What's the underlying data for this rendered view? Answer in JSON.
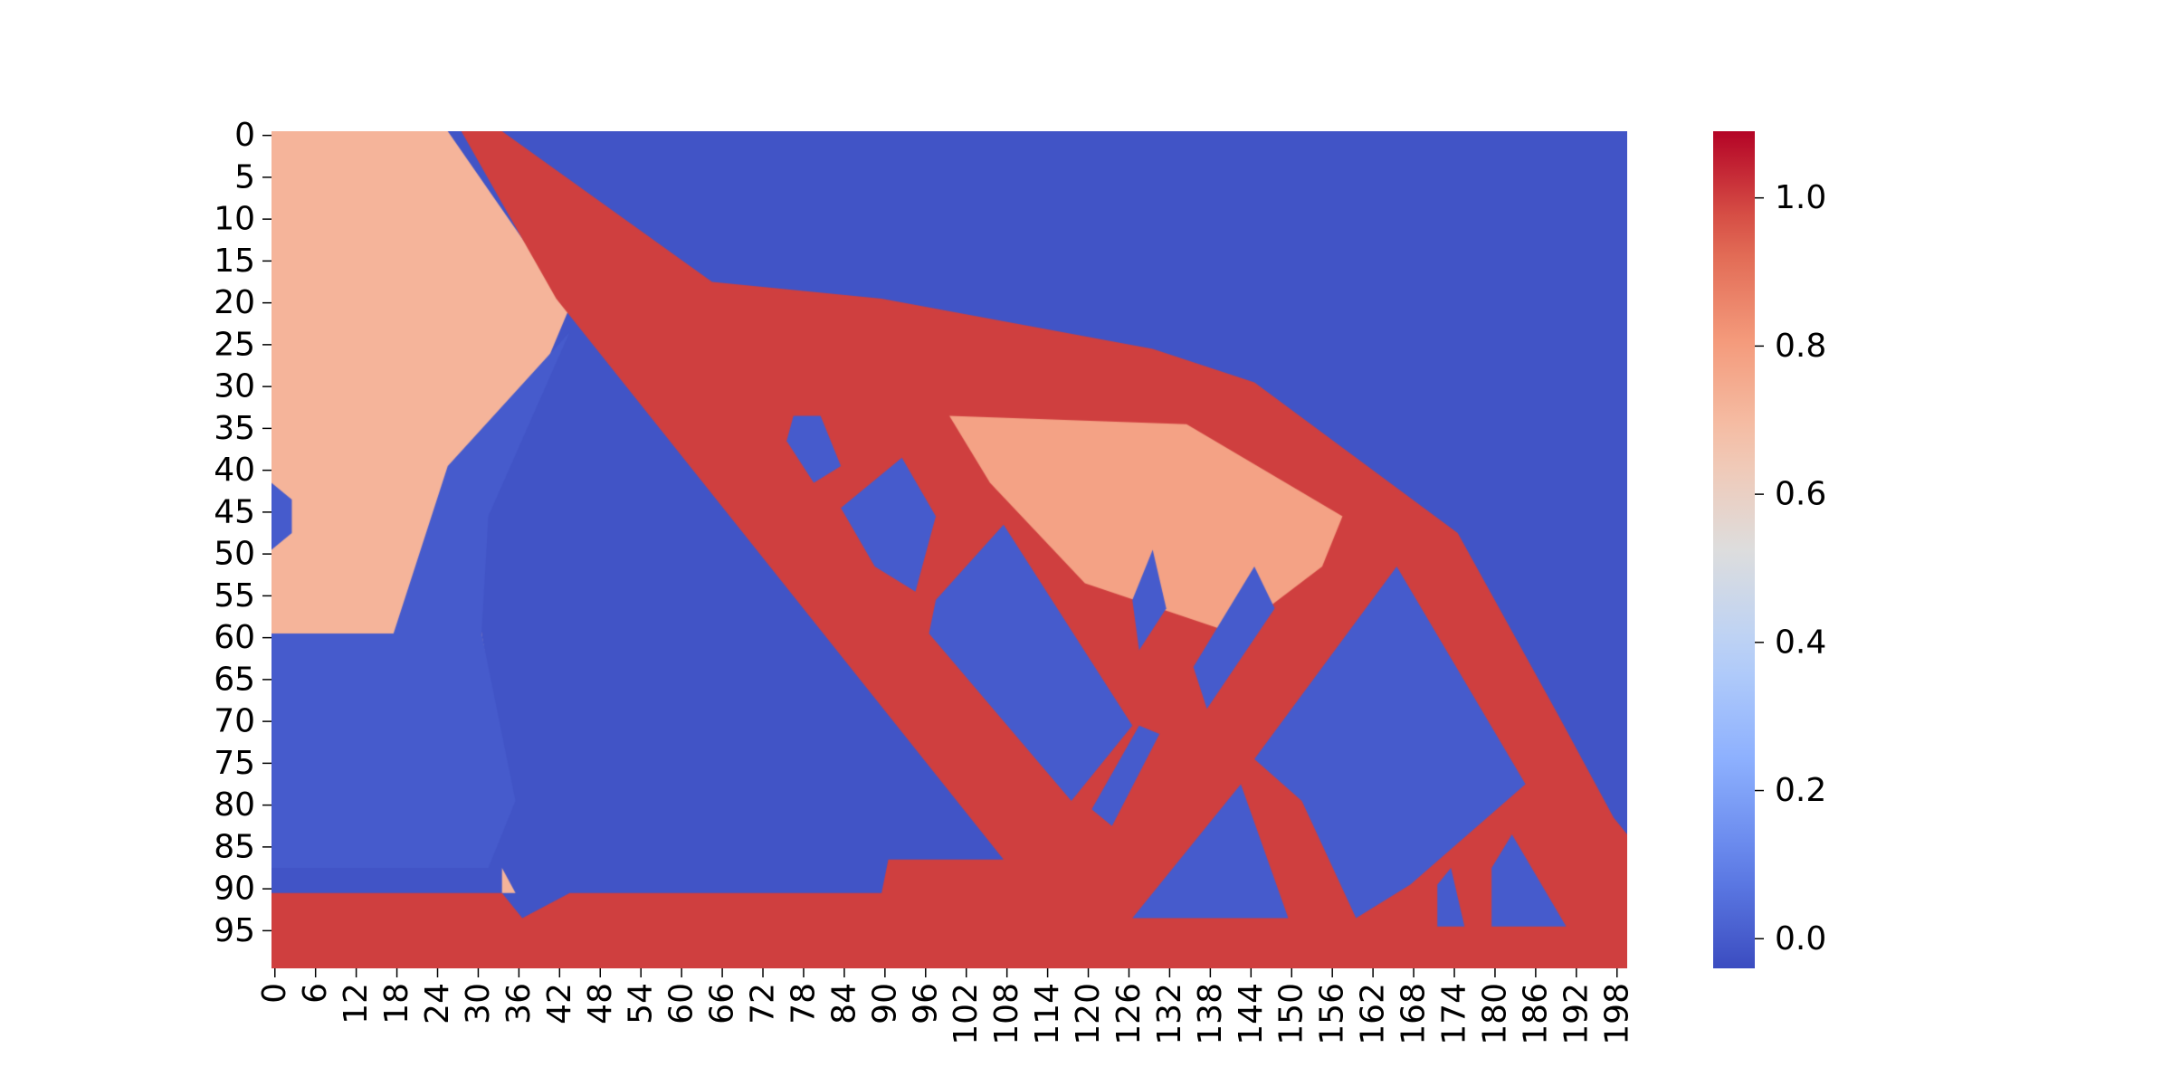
{
  "chart_data": {
    "type": "heatmap",
    "title": "",
    "xlabel": "",
    "ylabel": "",
    "grid": false,
    "rows": 100,
    "cols": 200,
    "x_ticks": [
      "0",
      "6",
      "12",
      "18",
      "24",
      "30",
      "36",
      "42",
      "48",
      "54",
      "60",
      "66",
      "72",
      "78",
      "84",
      "90",
      "96",
      "102",
      "108",
      "114",
      "120",
      "126",
      "132",
      "138",
      "144",
      "150",
      "156",
      "162",
      "168",
      "174",
      "180",
      "186",
      "192",
      "198"
    ],
    "y_ticks": [
      "0",
      "5",
      "10",
      "15",
      "20",
      "25",
      "30",
      "35",
      "40",
      "45",
      "50",
      "55",
      "60",
      "65",
      "70",
      "75",
      "80",
      "85",
      "90",
      "95"
    ],
    "colorbar": {
      "colormap": "coolwarm",
      "vmin": -0.04,
      "vmax": 1.09,
      "ticks": [
        "0.0",
        "0.2",
        "0.4",
        "0.6",
        "0.8",
        "1.0"
      ]
    },
    "background_value": -0.02,
    "structure_value": 1.0,
    "regions": [
      {
        "name": "left-fan",
        "value": 0.72,
        "polygon": [
          [
            0,
            0
          ],
          [
            26,
            0
          ],
          [
            44,
            21
          ],
          [
            30,
            48
          ],
          [
            31,
            60
          ],
          [
            35,
            79
          ],
          [
            31,
            88
          ],
          [
            0,
            88
          ]
        ]
      },
      {
        "name": "hole-left-edge",
        "value": 0.0,
        "polygon": [
          [
            0,
            42
          ],
          [
            3,
            44
          ],
          [
            3,
            48
          ],
          [
            0,
            50
          ]
        ]
      },
      {
        "name": "left-fan-inner-cut",
        "value": 0.0,
        "polygon": [
          [
            44,
            24
          ],
          [
            32,
            46
          ],
          [
            31,
            60
          ],
          [
            36,
            80
          ],
          [
            32,
            88
          ],
          [
            0,
            88
          ],
          [
            0,
            60
          ],
          [
            18,
            60
          ],
          [
            26,
            40
          ]
        ]
      },
      {
        "name": "top-body",
        "value": 1.0,
        "polygon": [
          [
            28,
            0
          ],
          [
            34,
            0
          ],
          [
            65,
            18
          ],
          [
            90,
            20
          ],
          [
            130,
            26
          ],
          [
            145,
            30
          ],
          [
            175,
            48
          ],
          [
            190,
            70
          ],
          [
            198,
            82
          ],
          [
            200,
            84
          ],
          [
            200,
            100
          ],
          [
            0,
            100
          ],
          [
            0,
            91
          ],
          [
            34,
            91
          ],
          [
            37,
            94
          ],
          [
            44,
            91
          ],
          [
            90,
            91
          ],
          [
            91,
            87
          ],
          [
            108,
            87
          ],
          [
            42,
            20
          ]
        ]
      },
      {
        "name": "top-body-light",
        "value": 0.78,
        "polygon": [
          [
            100,
            34
          ],
          [
            135,
            35
          ],
          [
            158,
            46
          ],
          [
            155,
            52
          ],
          [
            142,
            60
          ],
          [
            120,
            54
          ],
          [
            106,
            42
          ]
        ]
      },
      {
        "name": "hole-h1",
        "value": 0.0,
        "polygon": [
          [
            77,
            34
          ],
          [
            81,
            34
          ],
          [
            84,
            40
          ],
          [
            80,
            42
          ],
          [
            76,
            37
          ]
        ]
      },
      {
        "name": "hole-h2",
        "value": 0.0,
        "polygon": [
          [
            93,
            39
          ],
          [
            98,
            46
          ],
          [
            95,
            55
          ],
          [
            89,
            52
          ],
          [
            84,
            45
          ]
        ]
      },
      {
        "name": "hole-h3",
        "value": 0.0,
        "polygon": [
          [
            108,
            47
          ],
          [
            127,
            71
          ],
          [
            118,
            80
          ],
          [
            97,
            60
          ],
          [
            98,
            56
          ]
        ]
      },
      {
        "name": "hole-h4",
        "value": 0.0,
        "polygon": [
          [
            130,
            50
          ],
          [
            132,
            57
          ],
          [
            128,
            62
          ],
          [
            127,
            56
          ]
        ]
      },
      {
        "name": "hole-h5",
        "value": 0.0,
        "polygon": [
          [
            145,
            52
          ],
          [
            148,
            57
          ],
          [
            138,
            69
          ],
          [
            136,
            64
          ]
        ]
      },
      {
        "name": "hole-h6",
        "value": 0.0,
        "polygon": [
          [
            131,
            72
          ],
          [
            124,
            83
          ],
          [
            121,
            81
          ],
          [
            128,
            71
          ]
        ]
      },
      {
        "name": "hole-h7",
        "value": 0.0,
        "polygon": [
          [
            166,
            52
          ],
          [
            185,
            78
          ],
          [
            168,
            90
          ],
          [
            160,
            94
          ],
          [
            152,
            80
          ],
          [
            145,
            75
          ]
        ]
      },
      {
        "name": "hole-h8",
        "value": 0.0,
        "polygon": [
          [
            143,
            78
          ],
          [
            150,
            94
          ],
          [
            127,
            94
          ]
        ]
      },
      {
        "name": "hole-h9",
        "value": 0.0,
        "polygon": [
          [
            174,
            88
          ],
          [
            176,
            95
          ],
          [
            172,
            95
          ],
          [
            172,
            90
          ]
        ]
      },
      {
        "name": "hole-h10",
        "value": 0.0,
        "polygon": [
          [
            183,
            84
          ],
          [
            191,
            95
          ],
          [
            180,
            95
          ],
          [
            180,
            88
          ]
        ]
      },
      {
        "name": "bottom-fade",
        "value": 0.72,
        "polygon": [
          [
            34,
            88
          ],
          [
            36,
            91
          ],
          [
            34,
            91
          ]
        ]
      }
    ]
  }
}
